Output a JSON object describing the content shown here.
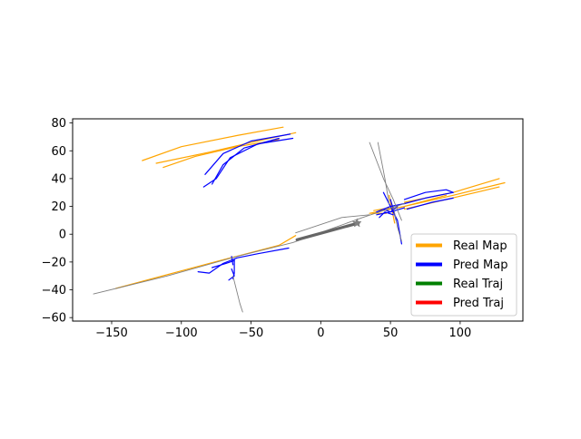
{
  "chart_data": {
    "type": "line",
    "title": "",
    "xlabel": "",
    "ylabel": "",
    "xlim": [
      -178,
      145
    ],
    "ylim": [
      -62.5,
      83
    ],
    "x_ticks": [
      -150,
      -100,
      -50,
      0,
      50,
      100
    ],
    "y_ticks": [
      -60,
      -40,
      -20,
      0,
      20,
      40,
      60,
      80
    ],
    "x_tick_labels": [
      "−150",
      "−100",
      "−50",
      "0",
      "50",
      "100"
    ],
    "y_tick_labels": [
      "−60",
      "−40",
      "−20",
      "0",
      "20",
      "40",
      "60",
      "80"
    ],
    "grid": false,
    "legend_position": "lower-right",
    "legend": [
      {
        "label": "Real Map",
        "color": "#ffa500"
      },
      {
        "label": "Pred Map",
        "color": "#0000ff"
      },
      {
        "label": "Real Traj",
        "color": "#008000"
      },
      {
        "label": "Pred Traj",
        "color": "#ff0000"
      }
    ],
    "colors": {
      "real_map": "#ffa500",
      "pred_map": "#0000ff",
      "context": "#808080",
      "ego": "#666666"
    },
    "series": [
      {
        "name": "Real Map",
        "color": "#ffa500",
        "lines": [
          [
            [
              -128,
              53
            ],
            [
              -100,
              63
            ],
            [
              -60,
              71
            ],
            [
              -27,
              77
            ]
          ],
          [
            [
              -118,
              51
            ],
            [
              -80,
              59
            ],
            [
              -50,
              66
            ],
            [
              -18,
              73
            ]
          ],
          [
            [
              -113,
              48
            ],
            [
              -90,
              56
            ],
            [
              -60,
              63
            ],
            [
              -30,
              68
            ]
          ],
          [
            [
              -147,
              -39
            ],
            [
              -80,
              -21
            ],
            [
              -30,
              -8
            ]
          ],
          [
            [
              -30,
              -8
            ],
            [
              -18,
              -1
            ]
          ],
          [
            [
              35,
              15
            ],
            [
              60,
              20
            ],
            [
              90,
              28
            ]
          ],
          [
            [
              60,
              23
            ],
            [
              95,
              30
            ],
            [
              128,
              40
            ]
          ],
          [
            [
              60,
              20
            ],
            [
              95,
              28
            ],
            [
              132,
              37
            ]
          ],
          [
            [
              60,
              18
            ],
            [
              90,
              25
            ],
            [
              128,
              34
            ]
          ],
          [
            [
              49,
              28
            ],
            [
              51,
              18
            ],
            [
              53,
              8
            ]
          ],
          [
            [
              38,
              17
            ],
            [
              49,
              19
            ]
          ],
          [
            [
              36,
              15
            ],
            [
              47,
              15
            ]
          ]
        ]
      },
      {
        "name": "Pred Map",
        "color": "#0000ff",
        "lines": [
          [
            [
              -83,
              43
            ],
            [
              -70,
              58
            ],
            [
              -50,
              67
            ],
            [
              -22,
              72
            ]
          ],
          [
            [
              -84,
              34
            ],
            [
              -75,
              40
            ],
            [
              -65,
              55
            ],
            [
              -45,
              65
            ],
            [
              -20,
              69
            ]
          ],
          [
            [
              -78,
              36
            ],
            [
              -70,
              50
            ],
            [
              -55,
              62
            ],
            [
              -30,
              69
            ]
          ],
          [
            [
              -88,
              -27
            ],
            [
              -80,
              -28
            ],
            [
              -70,
              -21
            ],
            [
              -60,
              -17
            ],
            [
              -45,
              -14
            ],
            [
              -23,
              -10
            ]
          ],
          [
            [
              -78,
              -24
            ],
            [
              -68,
              -21
            ],
            [
              -62,
              -19
            ]
          ],
          [
            [
              -64,
              -25
            ],
            [
              -62,
              -30
            ],
            [
              -66,
              -33
            ]
          ],
          [
            [
              -64,
              -16
            ],
            [
              -63,
              -22
            ]
          ],
          [
            [
              -62,
              -18
            ],
            [
              -62,
              -28
            ],
            [
              -63,
              -32
            ]
          ],
          [
            [
              60,
              25
            ],
            [
              75,
              30
            ],
            [
              90,
              32
            ],
            [
              95,
              30
            ]
          ],
          [
            [
              60,
              22
            ],
            [
              75,
              26
            ],
            [
              95,
              30
            ]
          ],
          [
            [
              62,
              18
            ],
            [
              80,
              23
            ],
            [
              95,
              26
            ]
          ],
          [
            [
              40,
              14
            ],
            [
              50,
              16
            ],
            [
              60,
              19
            ]
          ],
          [
            [
              40,
              16
            ],
            [
              50,
              20
            ],
            [
              60,
              22
            ]
          ],
          [
            [
              45,
              30
            ],
            [
              50,
              20
            ],
            [
              55,
              10
            ],
            [
              58,
              -7
            ]
          ],
          [
            [
              50,
              25
            ],
            [
              52,
              18
            ],
            [
              54,
              10
            ]
          ],
          [
            [
              45,
              18
            ],
            [
              50,
              16
            ],
            [
              55,
              20
            ]
          ],
          [
            [
              42,
              12
            ],
            [
              46,
              16
            ],
            [
              52,
              14
            ]
          ]
        ]
      },
      {
        "name": "Real Traj",
        "color": "#008000",
        "lines": []
      },
      {
        "name": "Pred Traj",
        "color": "#ff0000",
        "lines": []
      },
      {
        "color": "#808080",
        "lines": [
          [
            [
              -163,
              -43
            ],
            [
              -110,
              -30
            ],
            [
              -60,
              -16
            ],
            [
              -20,
              -6
            ],
            [
              30,
              12
            ],
            [
              60,
              22
            ]
          ],
          [
            [
              -18,
              1
            ],
            [
              15,
              12
            ],
            [
              35,
              14
            ]
          ],
          [
            [
              -63,
              -30
            ],
            [
              -58,
              -50
            ],
            [
              -56,
              -56
            ]
          ],
          [
            [
              41,
              66
            ],
            [
              46,
              40
            ],
            [
              49,
              22
            ]
          ],
          [
            [
              35,
              66
            ],
            [
              45,
              40
            ],
            [
              52,
              25
            ],
            [
              58,
              10
            ]
          ],
          [
            [
              52,
              20
            ],
            [
              55,
              5
            ],
            [
              58,
              -5
            ]
          ]
        ]
      },
      {
        "color": "#666666",
        "lines": [
          [
            [
              -17,
              -4
            ],
            [
              27,
              8
            ]
          ]
        ]
      }
    ],
    "markers": [
      {
        "x": 26,
        "y": 8,
        "symbol": "star",
        "color": "#808080"
      }
    ]
  }
}
